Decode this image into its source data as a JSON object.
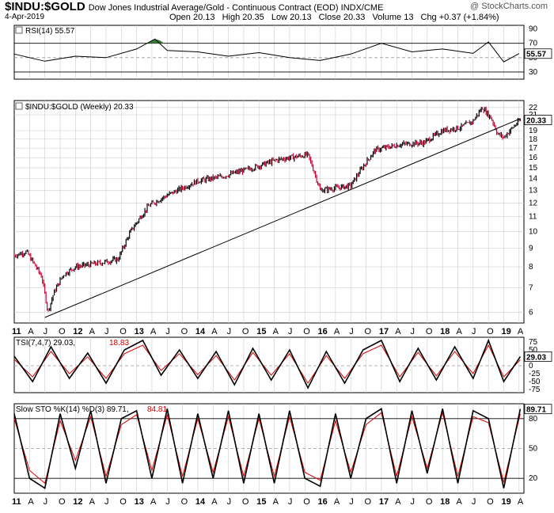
{
  "header": {
    "symbol": "$INDU:$GOLD",
    "description": "Dow Jones Industrial Average/Gold - Continuous Contract (EOD) INDX/CME",
    "date": "4-Apr-2019",
    "open": "Open 20.13",
    "high": "High 20.35",
    "low": "Low 20.13",
    "close": "Close 20.33",
    "volume": "Volume 13",
    "change": "Chg +0.37 (+1.84%)",
    "copyright": "@ StockCharts.com"
  },
  "colors": {
    "up": "#000000",
    "down": "#cc0033",
    "signal": "#d40000",
    "overbought_fill": "#3a7a3a",
    "grid": "#cccccc"
  },
  "chart_data": [
    {
      "type": "line",
      "panel": "rsi",
      "label": "RSI(14) 55.57",
      "last_value_label": "55.57",
      "ylim": [
        20,
        95
      ],
      "y_ticks": [
        "90",
        "70",
        "50",
        "30"
      ],
      "reference_lines": [
        70,
        50,
        30
      ],
      "x_year": [
        2011.0,
        2011.5,
        2012.0,
        2012.5,
        2013.0,
        2013.3,
        2013.5,
        2014.0,
        2014.5,
        2015.0,
        2015.5,
        2016.0,
        2016.5,
        2017.0,
        2017.5,
        2018.0,
        2018.5,
        2018.75,
        2019.0,
        2019.25
      ],
      "values": [
        55,
        45,
        52,
        50,
        62,
        76,
        60,
        58,
        52,
        57,
        50,
        46,
        55,
        70,
        58,
        62,
        56,
        72,
        44,
        55.57
      ]
    },
    {
      "type": "line",
      "panel": "price",
      "label": "$INDU:$GOLD (Weekly) 20.33",
      "last_value_label": "20.33",
      "scale": "log",
      "ylim": [
        5.6,
        23
      ],
      "y_ticks": [
        "22",
        "21",
        "19",
        "18",
        "17",
        "16",
        "15",
        "14",
        "13",
        "12",
        "11",
        "10",
        "9",
        "8",
        "7",
        "6"
      ],
      "x_tick_labels": [
        "11",
        "A",
        "J",
        "O",
        "12",
        "A",
        "J",
        "O",
        "13",
        "A",
        "J",
        "O",
        "14",
        "A",
        "J",
        "O",
        "15",
        "A",
        "J",
        "O",
        "16",
        "A",
        "J",
        "O",
        "17",
        "A",
        "J",
        "O",
        "18",
        "A",
        "J",
        "O",
        "19",
        "A"
      ],
      "x_year": [
        2011.0,
        2011.2,
        2011.45,
        2011.55,
        2011.65,
        2011.8,
        2012.0,
        2012.4,
        2012.7,
        2012.9,
        2013.2,
        2013.5,
        2014.0,
        2014.4,
        2014.9,
        2015.3,
        2015.8,
        2016.0,
        2016.5,
        2016.9,
        2017.3,
        2017.7,
        2018.0,
        2018.3,
        2018.5,
        2018.65,
        2018.8,
        2018.9,
        2019.0,
        2019.27
      ],
      "values": [
        8.6,
        8.8,
        7.5,
        6.0,
        6.8,
        7.6,
        8.0,
        8.2,
        8.4,
        10.0,
        11.8,
        12.6,
        13.8,
        14.2,
        15.0,
        15.8,
        16.3,
        13.0,
        13.4,
        16.8,
        17.4,
        17.6,
        19.0,
        19.4,
        20.2,
        22.0,
        20.5,
        18.6,
        18.2,
        20.33
      ],
      "trendline": {
        "x_year": [
          2011.5,
          2019.27
        ],
        "values": [
          5.8,
          20.5
        ]
      }
    },
    {
      "type": "line",
      "panel": "tsi",
      "label": "TSI(7,4,7) 29.03,",
      "signal_label": "18.83",
      "last_value_label": "29.03",
      "ylim": [
        -85,
        90
      ],
      "y_ticks": [
        "75",
        "50",
        "25",
        "0",
        "-25",
        "-50",
        "-75"
      ],
      "series": [
        {
          "name": "TSI(7,4,7)",
          "x_year": [
            2011.0,
            2011.3,
            2011.6,
            2011.9,
            2012.2,
            2012.5,
            2012.8,
            2013.1,
            2013.4,
            2013.7,
            2014.0,
            2014.3,
            2014.6,
            2014.9,
            2015.2,
            2015.5,
            2015.8,
            2016.1,
            2016.4,
            2016.7,
            2017.0,
            2017.3,
            2017.6,
            2017.9,
            2018.2,
            2018.5,
            2018.75,
            2019.0,
            2019.27
          ],
          "values": [
            30,
            -50,
            60,
            -40,
            40,
            -55,
            50,
            80,
            -30,
            50,
            -40,
            45,
            -60,
            55,
            -45,
            50,
            -70,
            45,
            -55,
            50,
            80,
            -50,
            55,
            -45,
            60,
            -40,
            80,
            -50,
            29.03
          ]
        },
        {
          "name": "signal",
          "x_year": [
            2011.0,
            2011.3,
            2011.6,
            2011.9,
            2012.2,
            2012.5,
            2012.8,
            2013.1,
            2013.4,
            2013.7,
            2014.0,
            2014.3,
            2014.6,
            2014.9,
            2015.2,
            2015.5,
            2015.8,
            2016.1,
            2016.4,
            2016.7,
            2017.0,
            2017.3,
            2017.6,
            2017.9,
            2018.2,
            2018.5,
            2018.75,
            2019.0,
            2019.27
          ],
          "values": [
            20,
            -35,
            45,
            -25,
            28,
            -40,
            38,
            65,
            -15,
            38,
            -28,
            32,
            -45,
            42,
            -30,
            38,
            -55,
            32,
            -40,
            38,
            65,
            -35,
            42,
            -32,
            45,
            -25,
            65,
            -35,
            18.83
          ]
        }
      ]
    },
    {
      "type": "line",
      "panel": "stochastic",
      "label": "Slow STO %K(14) %D(3) 89.71,",
      "signal_label": "84.81",
      "last_value_label": "89.71",
      "ylim": [
        5,
        95
      ],
      "y_ticks": [
        "80",
        "50",
        "20"
      ],
      "reference_lines": [
        80,
        50,
        20
      ],
      "x_tick_labels": [
        "11",
        "A",
        "J",
        "O",
        "12",
        "A",
        "J",
        "O",
        "13",
        "A",
        "J",
        "O",
        "14",
        "A",
        "J",
        "O",
        "15",
        "A",
        "J",
        "O",
        "16",
        "A",
        "J",
        "O",
        "17",
        "A",
        "J",
        "O",
        "18",
        "A",
        "J",
        "O",
        "19",
        "A"
      ],
      "series": [
        {
          "name": "%K",
          "x_year": [
            2011.0,
            2011.25,
            2011.5,
            2011.75,
            2012.0,
            2012.25,
            2012.5,
            2012.75,
            2013.0,
            2013.25,
            2013.5,
            2013.75,
            2014.0,
            2014.25,
            2014.5,
            2014.75,
            2015.0,
            2015.25,
            2015.5,
            2015.75,
            2016.0,
            2016.25,
            2016.5,
            2016.75,
            2017.0,
            2017.25,
            2017.5,
            2017.75,
            2018.0,
            2018.25,
            2018.5,
            2018.75,
            2019.0,
            2019.27
          ],
          "values": [
            85,
            20,
            10,
            85,
            30,
            88,
            15,
            80,
            88,
            20,
            90,
            15,
            85,
            20,
            88,
            15,
            85,
            15,
            88,
            20,
            12,
            85,
            20,
            80,
            90,
            15,
            88,
            25,
            90,
            15,
            88,
            80,
            10,
            89.71
          ]
        },
        {
          "name": "%D",
          "x_year": [
            2011.0,
            2011.25,
            2011.5,
            2011.75,
            2012.0,
            2012.25,
            2012.5,
            2012.75,
            2013.0,
            2013.25,
            2013.5,
            2013.75,
            2014.0,
            2014.25,
            2014.5,
            2014.75,
            2015.0,
            2015.25,
            2015.5,
            2015.75,
            2016.0,
            2016.25,
            2016.5,
            2016.75,
            2017.0,
            2017.25,
            2017.5,
            2017.75,
            2018.0,
            2018.25,
            2018.5,
            2018.75,
            2019.0,
            2019.27
          ],
          "values": [
            80,
            28,
            15,
            78,
            38,
            82,
            22,
            74,
            84,
            28,
            84,
            22,
            80,
            26,
            82,
            22,
            80,
            22,
            82,
            26,
            18,
            78,
            26,
            74,
            86,
            22,
            82,
            30,
            86,
            22,
            82,
            76,
            16,
            84.81
          ]
        }
      ]
    }
  ]
}
